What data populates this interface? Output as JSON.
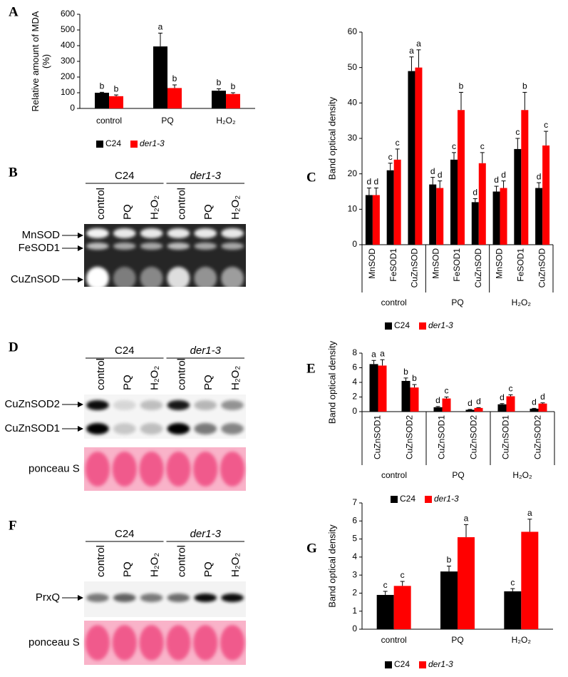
{
  "chart_data": [
    {
      "panel": "A",
      "type": "bar",
      "y_label": [
        "Relative amount of MDA",
        "(%)"
      ],
      "categories": [
        "control",
        "PQ",
        "H₂O₂"
      ],
      "series": [
        {
          "name": "C24",
          "color": "#000000",
          "values": [
            100,
            395,
            113
          ],
          "errors": [
            3,
            85,
            12
          ],
          "letters": [
            "b",
            "a",
            "b"
          ]
        },
        {
          "name": "der1-3",
          "color": "#ff0000",
          "values": [
            78,
            130,
            92
          ],
          "errors": [
            8,
            20,
            8
          ],
          "letters": [
            "b",
            "b",
            "b"
          ]
        }
      ],
      "ylim": [
        0,
        600
      ],
      "yticks": [
        0,
        100,
        200,
        300,
        400,
        500,
        600
      ]
    },
    {
      "panel": "C",
      "type": "bar",
      "y_label": [
        "Band optical density"
      ],
      "categories": [
        "MnSOD",
        "FeSOD1",
        "CuZnSOD",
        "MnSOD",
        "FeSOD1",
        "CuZnSOD",
        "MnSOD",
        "FeSOD1",
        "CuZnSOD"
      ],
      "groups": [
        "control",
        "PQ",
        "H₂O₂"
      ],
      "series": [
        {
          "name": "C24",
          "color": "#000000",
          "values": [
            14,
            21,
            49,
            17,
            24,
            12,
            15,
            27,
            16
          ],
          "errors": [
            2,
            2,
            4,
            2,
            2,
            1,
            1.5,
            3,
            1.5
          ],
          "letters": [
            "d",
            "c",
            "a",
            "d",
            "c",
            "d",
            "d",
            "c",
            "d"
          ]
        },
        {
          "name": "der1-3",
          "color": "#ff0000",
          "values": [
            14,
            24,
            50,
            16,
            38,
            23,
            16,
            38,
            28
          ],
          "errors": [
            2,
            3,
            5,
            2,
            5,
            3,
            2,
            5,
            4
          ],
          "letters": [
            "d",
            "c",
            "a",
            "d",
            "b",
            "c",
            "d",
            "b",
            "c"
          ]
        }
      ],
      "ylim": [
        0,
        60
      ],
      "yticks": [
        0,
        10,
        20,
        30,
        40,
        50,
        60
      ]
    },
    {
      "panel": "E",
      "type": "bar",
      "y_label": [
        "Band optical density"
      ],
      "categories": [
        "CuZnSOD1",
        "CuZnSOD2",
        "CuZnSOD1",
        "CuZnSOD2",
        "CuZnSOD1",
        "CuZnSOD2"
      ],
      "groups": [
        "control",
        "PQ",
        "H₂O₂"
      ],
      "series": [
        {
          "name": "C24",
          "color": "#000000",
          "values": [
            6.5,
            4.2,
            0.6,
            0.25,
            1.0,
            0.4
          ],
          "errors": [
            0.5,
            0.4,
            0.1,
            0.05,
            0.1,
            0.05
          ],
          "letters": [
            "a",
            "b",
            "d",
            "d",
            "d",
            "d"
          ]
        },
        {
          "name": "der1-3",
          "color": "#ff0000",
          "values": [
            6.3,
            3.3,
            1.8,
            0.5,
            2.1,
            1.1
          ],
          "errors": [
            0.8,
            0.4,
            0.2,
            0.05,
            0.2,
            0.1
          ],
          "letters": [
            "a",
            "b",
            "c",
            "d",
            "c",
            "d"
          ]
        }
      ],
      "ylim": [
        0,
        8
      ],
      "yticks": [
        0,
        2,
        4,
        6,
        8
      ]
    },
    {
      "panel": "G",
      "type": "bar",
      "y_label": [
        "Band optical density"
      ],
      "categories": [
        "control",
        "PQ",
        "H₂O₂"
      ],
      "series": [
        {
          "name": "C24",
          "color": "#000000",
          "values": [
            1.9,
            3.2,
            2.1
          ],
          "errors": [
            0.2,
            0.3,
            0.15
          ],
          "letters": [
            "c",
            "b",
            "c"
          ]
        },
        {
          "name": "der1-3",
          "color": "#ff0000",
          "values": [
            2.4,
            5.1,
            5.4
          ],
          "errors": [
            0.25,
            0.7,
            0.7
          ],
          "letters": [
            "c",
            "a",
            "a"
          ]
        }
      ],
      "ylim": [
        0,
        7
      ],
      "yticks": [
        0,
        1,
        2,
        3,
        4,
        5,
        6,
        7
      ]
    }
  ],
  "blots": [
    {
      "panel": "B",
      "genotypes": [
        "C24",
        "der1-3"
      ],
      "lanes": [
        "control",
        "PQ",
        "H₂O₂",
        "control",
        "PQ",
        "H₂O₂"
      ],
      "bands": [
        "MnSOD",
        "FeSOD1",
        "CuZnSOD"
      ]
    },
    {
      "panel": "D",
      "genotypes": [
        "C24",
        "der1-3"
      ],
      "lanes": [
        "control",
        "PQ",
        "H₂O₂",
        "control",
        "PQ",
        "H₂O₂"
      ],
      "bands": [
        "CuZnSOD2",
        "CuZnSOD1"
      ],
      "stain": "ponceau S"
    },
    {
      "panel": "F",
      "genotypes": [
        "C24",
        "der1-3"
      ],
      "lanes": [
        "control",
        "PQ",
        "H₂O₂",
        "control",
        "PQ",
        "H₂O₂"
      ],
      "bands": [
        "PrxQ"
      ],
      "stain": "ponceau S"
    }
  ]
}
